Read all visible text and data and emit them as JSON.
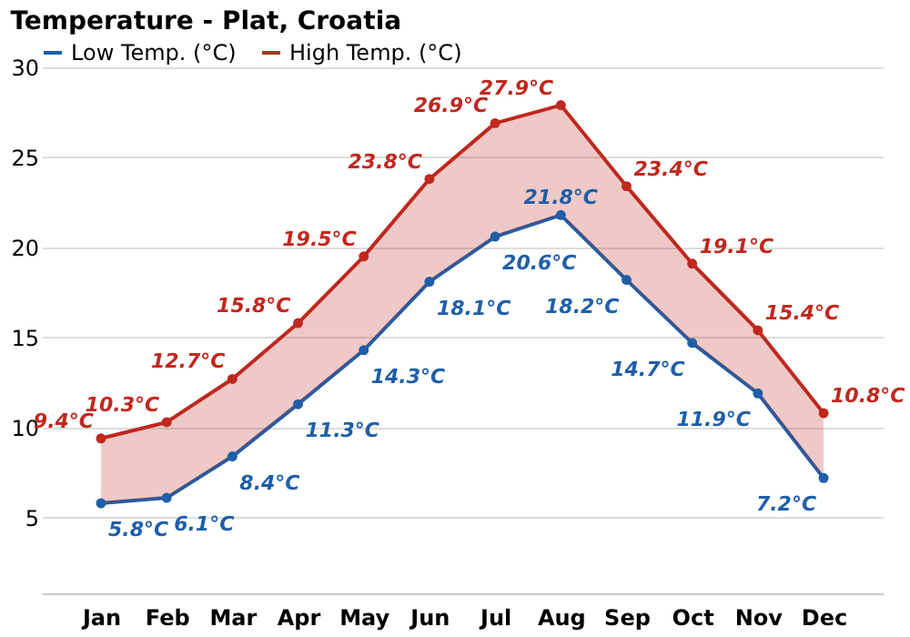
{
  "chart_data": {
    "type": "line",
    "title": "Temperature - Plat, Croatia",
    "categories": [
      "Jan",
      "Feb",
      "Mar",
      "Apr",
      "May",
      "Jun",
      "Jul",
      "Aug",
      "Sep",
      "Oct",
      "Nov",
      "Dec"
    ],
    "series": [
      {
        "name": "Low Temp. (°C)",
        "color": "#1f5fa8",
        "values": [
          5.8,
          6.1,
          8.4,
          11.3,
          14.3,
          18.1,
          20.6,
          21.8,
          18.2,
          14.7,
          11.9,
          7.2
        ],
        "value_labels": [
          "5.8°C",
          "6.1°C",
          "8.4°C",
          "11.3°C",
          "14.3°C",
          "18.1°C",
          "20.6°C",
          "21.8°C",
          "18.2°C",
          "14.7°C",
          "11.9°C",
          "7.2°C"
        ]
      },
      {
        "name": "High Temp. (°C)",
        "color": "#c0281e",
        "values": [
          9.4,
          10.3,
          12.7,
          15.8,
          19.5,
          23.8,
          26.9,
          27.9,
          23.4,
          19.1,
          15.4,
          10.8
        ],
        "value_labels": [
          "9.4°C",
          "10.3°C",
          "12.7°C",
          "15.8°C",
          "19.5°C",
          "23.8°C",
          "26.9°C",
          "27.9°C",
          "23.4°C",
          "19.1°C",
          "15.4°C",
          "10.8°C"
        ]
      }
    ],
    "ylim": [
      0.8,
      30
    ],
    "yticks": [
      5,
      10,
      15,
      20,
      25,
      30
    ],
    "grid": "y",
    "legend": "top left",
    "marker": "circle",
    "line_style": "solid"
  }
}
